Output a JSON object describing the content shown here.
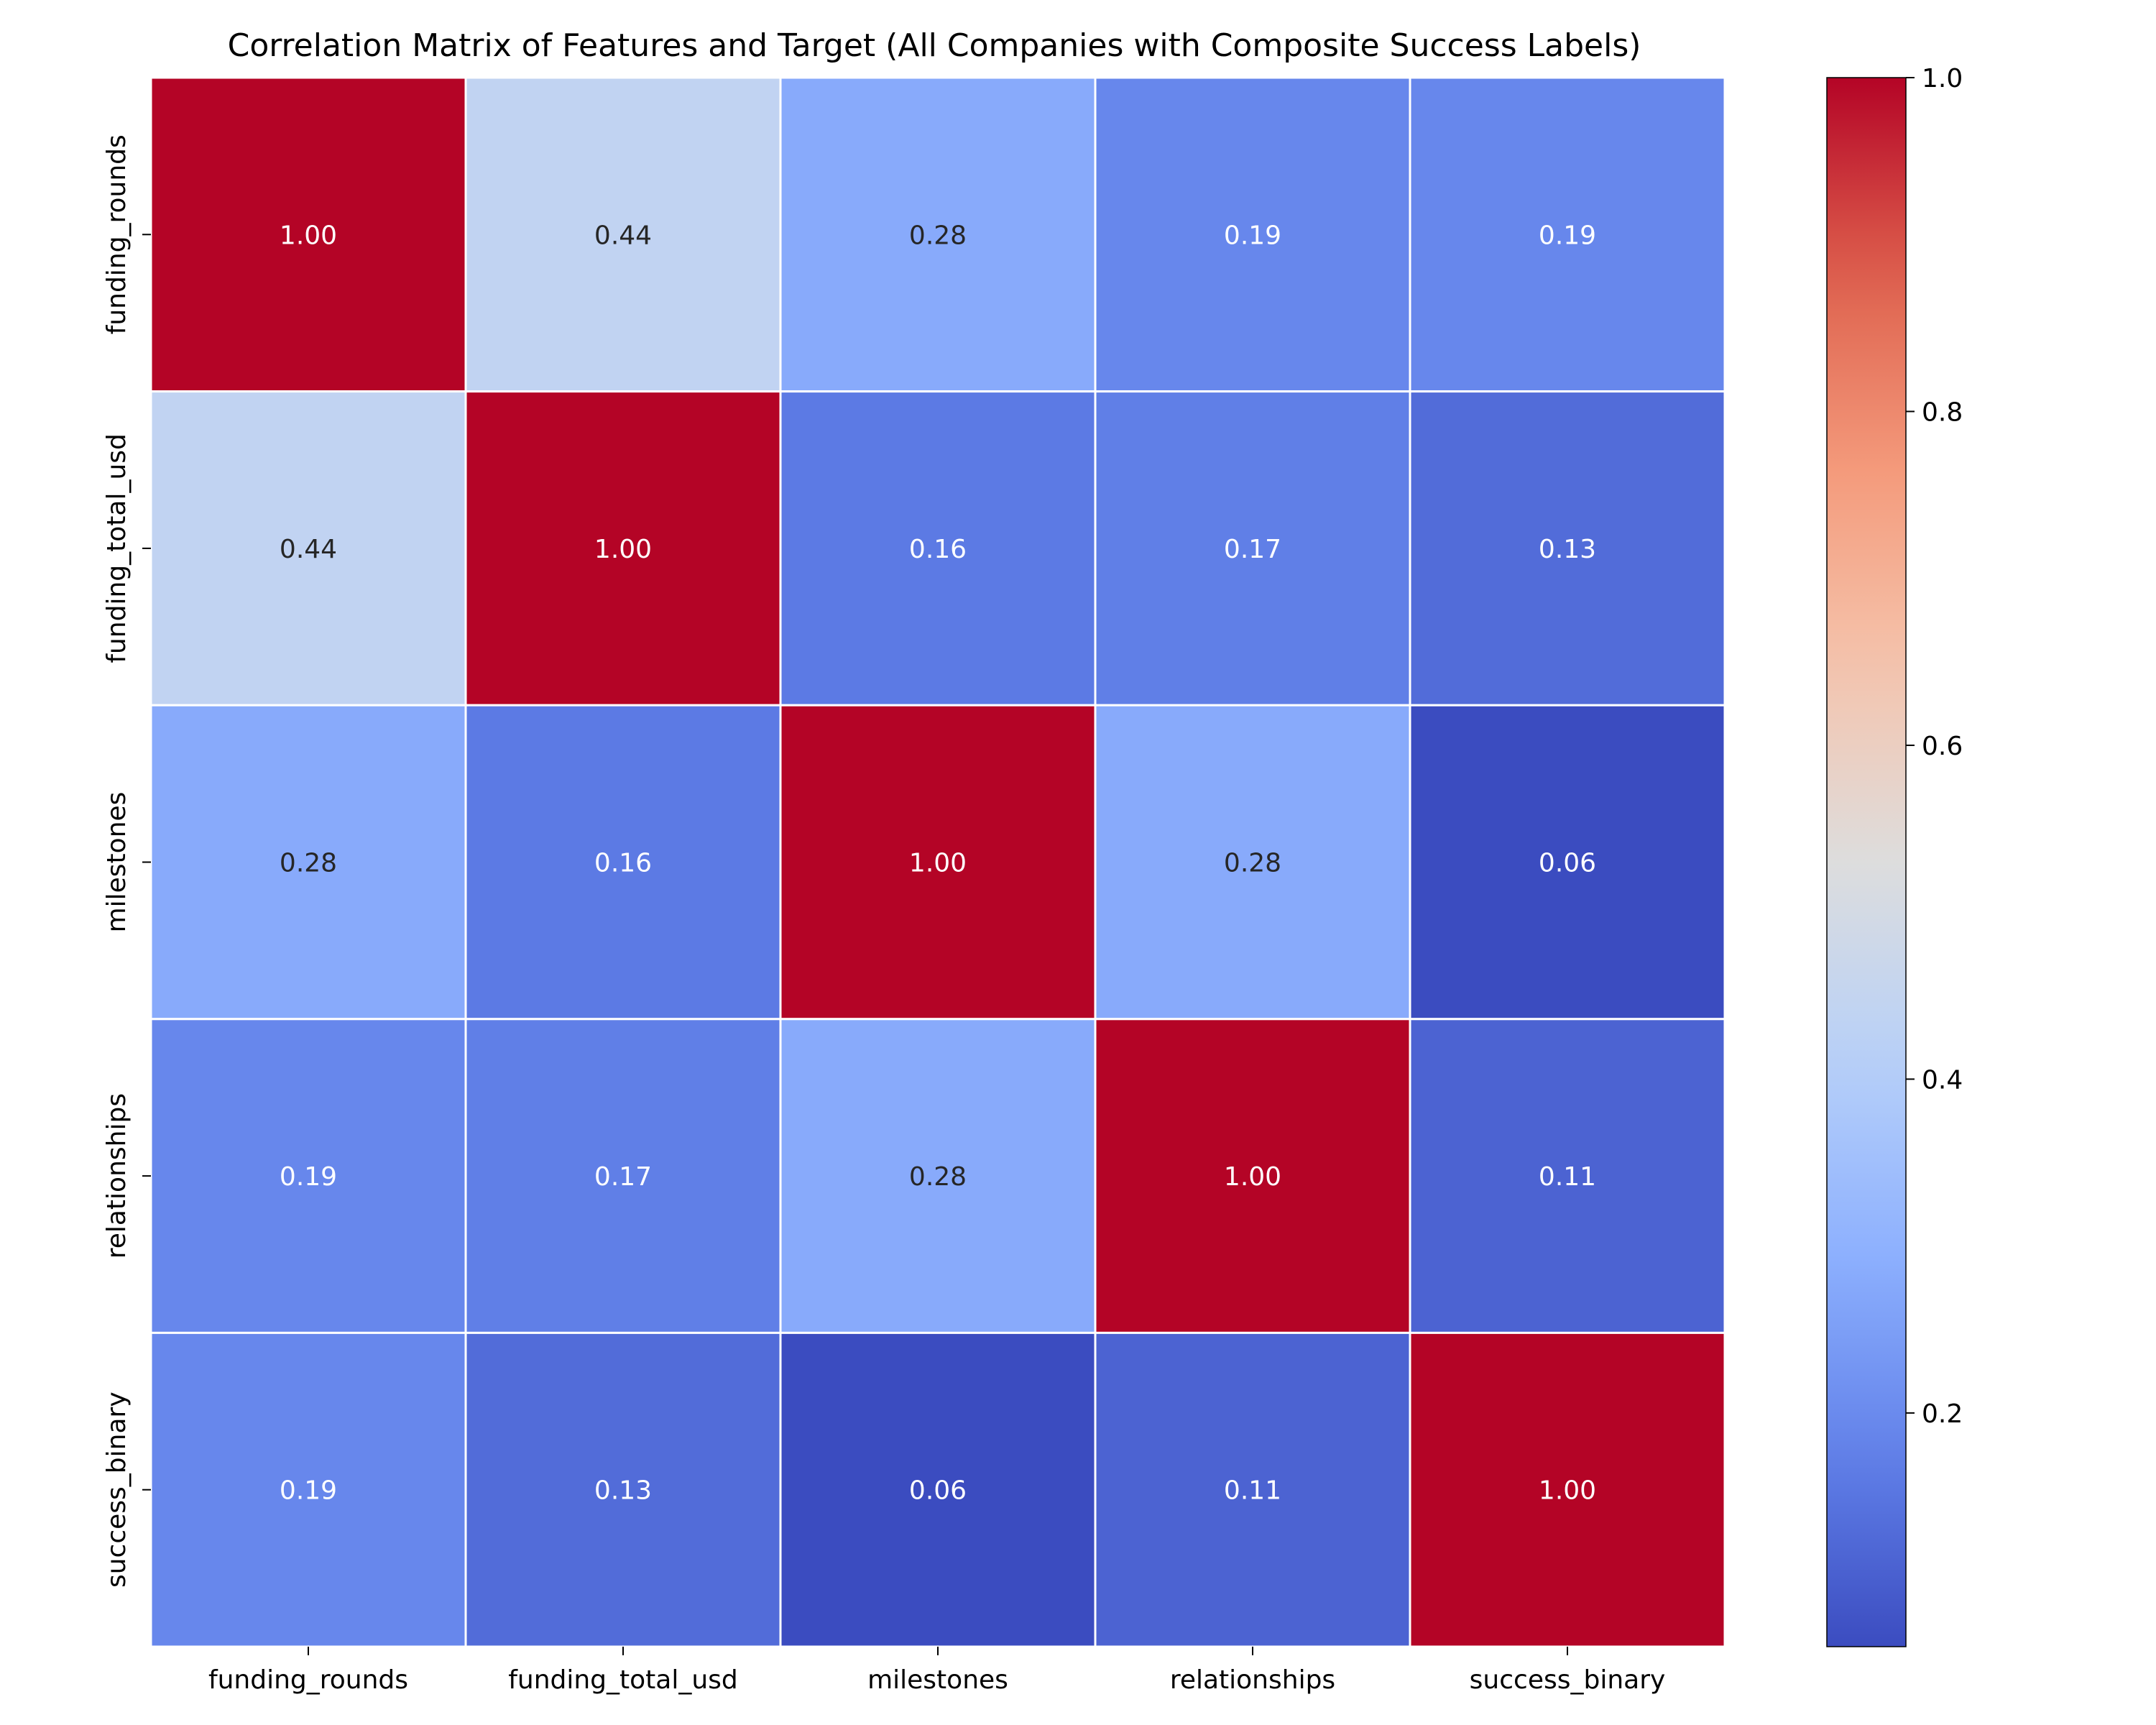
{
  "chart_data": {
    "type": "heatmap",
    "title": "Correlation Matrix of Features and Target (All Companies with Composite Success Labels)",
    "xlabel": "",
    "ylabel": "",
    "x_categories": [
      "funding_rounds",
      "funding_total_usd",
      "milestones",
      "relationships",
      "success_binary"
    ],
    "y_categories": [
      "funding_rounds",
      "funding_total_usd",
      "milestones",
      "relationships",
      "success_binary"
    ],
    "values": [
      [
        1.0,
        0.44,
        0.28,
        0.19,
        0.19
      ],
      [
        0.44,
        1.0,
        0.16,
        0.17,
        0.13
      ],
      [
        0.28,
        0.16,
        1.0,
        0.28,
        0.06
      ],
      [
        0.19,
        0.17,
        0.28,
        1.0,
        0.11
      ],
      [
        0.19,
        0.13,
        0.06,
        0.11,
        1.0
      ]
    ],
    "value_labels": [
      [
        "1.00",
        "0.44",
        "0.28",
        "0.19",
        "0.19"
      ],
      [
        "0.44",
        "1.00",
        "0.16",
        "0.17",
        "0.13"
      ],
      [
        "0.28",
        "0.16",
        "1.00",
        "0.28",
        "0.06"
      ],
      [
        "0.19",
        "0.17",
        "0.28",
        "1.00",
        "0.11"
      ],
      [
        "0.19",
        "0.13",
        "0.06",
        "0.11",
        "1.00"
      ]
    ],
    "colormap": "coolwarm",
    "colorbar": {
      "range": [
        0.06,
        1.0
      ],
      "ticks": [
        0.2,
        0.4,
        0.6,
        0.8,
        1.0
      ],
      "tick_labels": [
        "0.2",
        "0.4",
        "0.6",
        "0.8",
        "1.0"
      ],
      "placement": "right"
    },
    "grid": false,
    "cell_border_color": "#ffffff"
  }
}
